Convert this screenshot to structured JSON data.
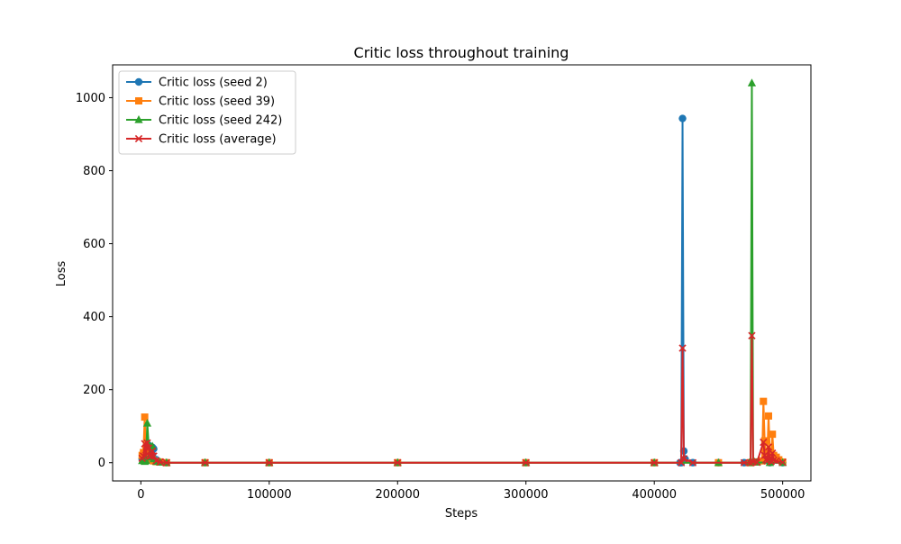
{
  "chart_data": {
    "type": "line",
    "title": "Critic loss throughout training",
    "xlabel": "Steps",
    "ylabel": "Loss",
    "xlim": [
      -22000,
      522000
    ],
    "ylim": [
      -50,
      1090
    ],
    "xticks": [
      0,
      100000,
      200000,
      300000,
      400000,
      500000
    ],
    "yticks": [
      0,
      200,
      400,
      600,
      800,
      1000
    ],
    "grid": false,
    "legend_position": "upper left",
    "series": [
      {
        "name": "Critic loss (seed 2)",
        "color": "#1f77b4",
        "marker": "circle",
        "x": [
          1000,
          2000,
          3000,
          4000,
          5000,
          6000,
          7000,
          8000,
          9000,
          10000,
          12000,
          15000,
          20000,
          50000,
          100000,
          200000,
          300000,
          400000,
          420000,
          421000,
          422000,
          423000,
          424000,
          430000,
          450000,
          470000,
          490000,
          500000
        ],
        "y": [
          10,
          18,
          28,
          22,
          30,
          48,
          25,
          20,
          42,
          38,
          8,
          2,
          0,
          0,
          0,
          0,
          0,
          0,
          0,
          0,
          943,
          32,
          10,
          0,
          0,
          0,
          0,
          0
        ]
      },
      {
        "name": "Critic loss (seed 39)",
        "color": "#ff7f0e",
        "marker": "square",
        "x": [
          1000,
          2000,
          3000,
          4000,
          5000,
          6000,
          7000,
          8000,
          9000,
          10000,
          12000,
          15000,
          20000,
          50000,
          100000,
          200000,
          300000,
          400000,
          450000,
          475000,
          480000,
          484000,
          485000,
          486000,
          487000,
          488000,
          489000,
          490000,
          491000,
          492000,
          493000,
          495000,
          497000,
          500000
        ],
        "y": [
          20,
          28,
          125,
          35,
          25,
          18,
          15,
          12,
          8,
          5,
          3,
          2,
          0,
          0,
          0,
          0,
          0,
          0,
          0,
          0,
          2,
          5,
          168,
          60,
          25,
          15,
          128,
          30,
          10,
          78,
          20,
          15,
          8,
          2
        ]
      },
      {
        "name": "Critic loss (seed 242)",
        "color": "#2ca02c",
        "marker": "triangle",
        "x": [
          1000,
          2000,
          3000,
          4000,
          5000,
          6000,
          7000,
          8000,
          9000,
          10000,
          12000,
          15000,
          20000,
          50000,
          100000,
          200000,
          300000,
          400000,
          450000,
          474000,
          475000,
          476000,
          477000,
          478000,
          480000,
          490000,
          500000
        ],
        "y": [
          5,
          8,
          3,
          5,
          108,
          52,
          15,
          25,
          45,
          10,
          3,
          1,
          0,
          0,
          0,
          0,
          0,
          0,
          0,
          0,
          0,
          1040,
          5,
          2,
          1,
          0,
          0
        ]
      },
      {
        "name": "Critic loss (average)",
        "color": "#d62728",
        "marker": "x",
        "x": [
          1000,
          2000,
          3000,
          4000,
          5000,
          6000,
          7000,
          8000,
          9000,
          10000,
          12000,
          15000,
          20000,
          50000,
          100000,
          200000,
          300000,
          400000,
          421000,
          422000,
          423000,
          430000,
          470000,
          475000,
          476000,
          477000,
          480000,
          485000,
          486000,
          487000,
          488000,
          489000,
          490000,
          491000,
          492000,
          493000,
          495000,
          500000
        ],
        "y": [
          12,
          18,
          52,
          20,
          54,
          40,
          18,
          19,
          32,
          18,
          5,
          2,
          0,
          0,
          0,
          0,
          0,
          0,
          0,
          314,
          11,
          0,
          0,
          0,
          348,
          2,
          1,
          56,
          20,
          8,
          5,
          43,
          10,
          3,
          26,
          7,
          5,
          1
        ]
      }
    ]
  }
}
